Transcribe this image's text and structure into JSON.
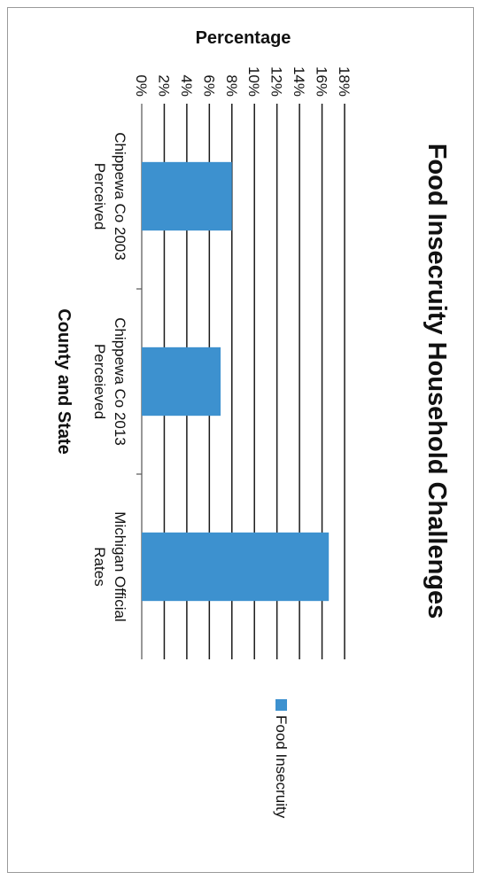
{
  "chart_data": {
    "type": "bar",
    "title": "Food Insecruity Household Challenges",
    "xlabel": "County and State",
    "ylabel": "Percentage",
    "categories": [
      [
        "Chippewa Co 2003",
        "Perceived"
      ],
      [
        "Chippewa Co 2013",
        "Perceieved"
      ],
      [
        "Michigan Official",
        "Rates"
      ]
    ],
    "series": [
      {
        "name": "Food Insecruity",
        "color": "#3d91cf",
        "values": [
          8.0,
          7.0,
          16.6
        ]
      }
    ],
    "ylim": [
      0,
      18
    ],
    "yticks": [
      "0%",
      "2%",
      "4%",
      "6%",
      "8%",
      "10%",
      "12%",
      "14%",
      "16%",
      "18%"
    ],
    "grid": true,
    "legend_position": "right",
    "orientation": "rotated-90-clockwise"
  }
}
